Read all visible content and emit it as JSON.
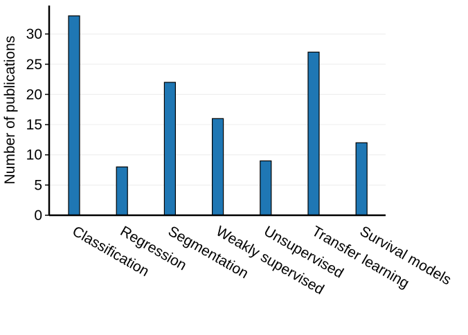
{
  "chart_data": {
    "type": "bar",
    "title": "",
    "xlabel": "",
    "ylabel": "Number of publications",
    "categories": [
      "Classification",
      "Regression",
      "Segmentation",
      "Weakly supervised",
      "Unsupervised",
      "Transfer learning",
      "Survival models"
    ],
    "values": [
      33,
      8,
      22,
      16,
      9,
      27,
      12
    ],
    "yticks": [
      0,
      5,
      10,
      15,
      20,
      25,
      30
    ],
    "ylim": [
      0,
      35
    ],
    "grid": true,
    "legend": "none",
    "bar_color": "#1f77b4",
    "bar_edge_color": "#000000"
  }
}
